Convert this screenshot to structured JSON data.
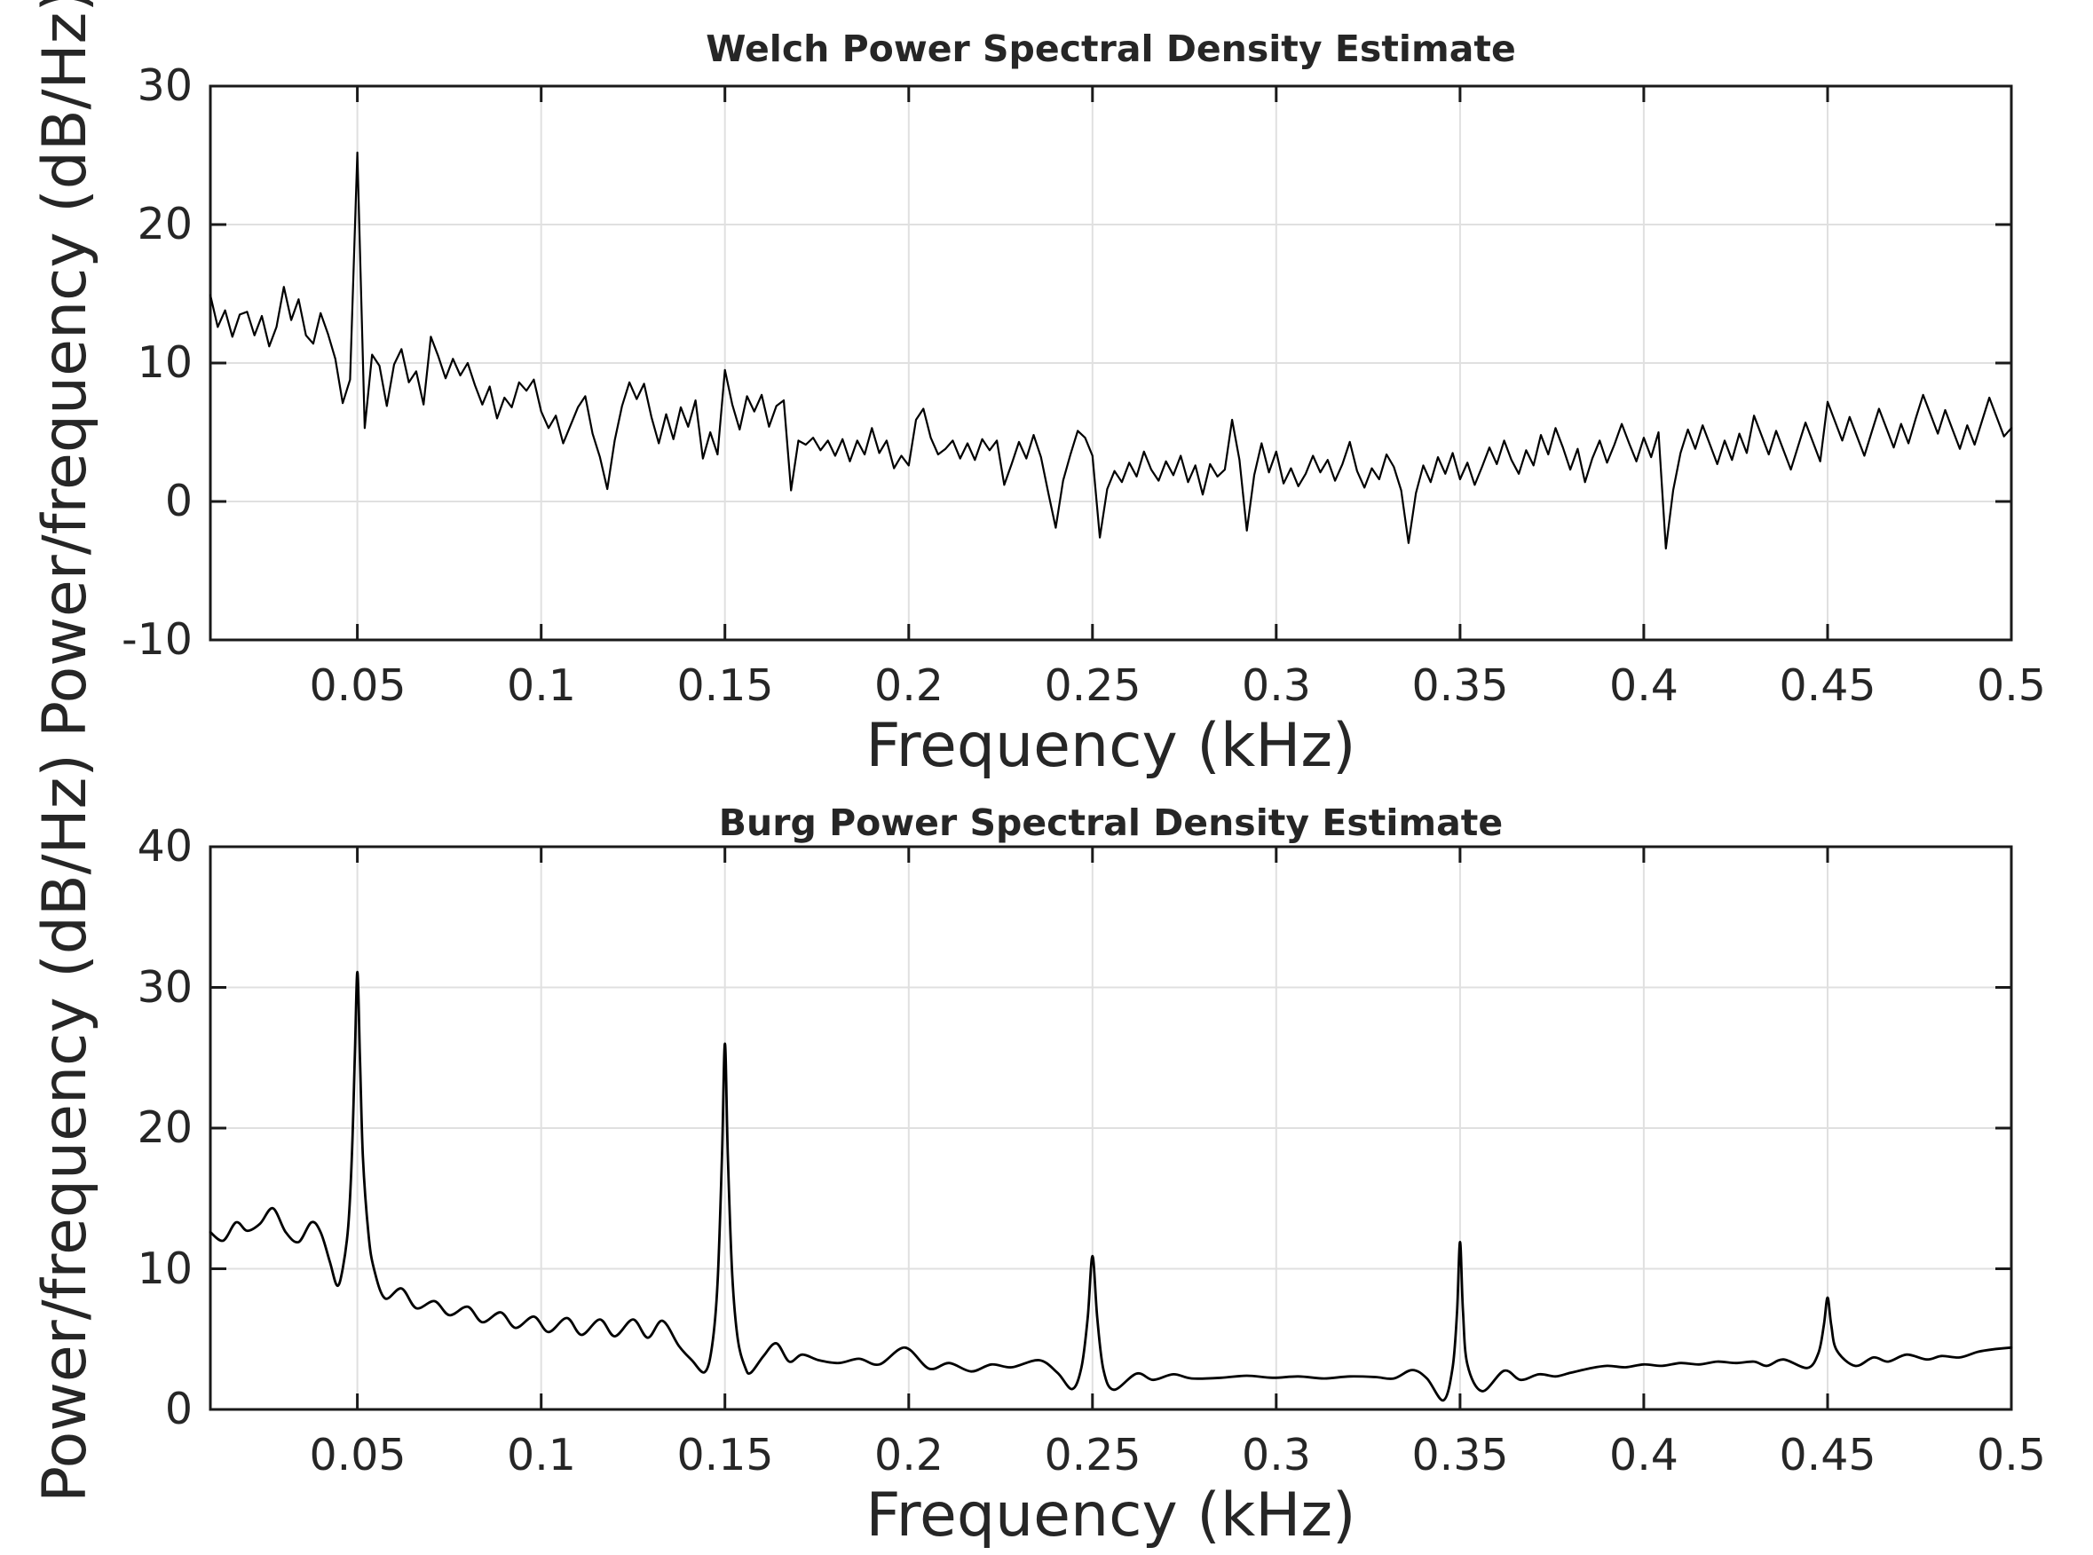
{
  "figure": {
    "background": "#ffffff",
    "text_color": "#262626",
    "grid_color": "#e0e0e0",
    "axis_color": "#1a1a1a",
    "line_color": "#000000"
  },
  "chart_data": [
    {
      "type": "line",
      "title": "Welch Power Spectral Density Estimate",
      "xlabel": "Frequency (kHz)",
      "ylabel": "Power/frequency (dB/Hz)",
      "xlim": [
        0.01,
        0.5
      ],
      "ylim": [
        -10,
        30
      ],
      "grid": true,
      "legend": "none",
      "xticks": {
        "values": [
          0.05,
          0.1,
          0.15,
          0.2,
          0.25,
          0.3,
          0.35,
          0.4,
          0.45,
          0.5
        ],
        "labels": [
          "0.05",
          "0.1",
          "0.15",
          "0.2",
          "0.25",
          "0.3",
          "0.35",
          "0.4",
          "0.45",
          "0.5"
        ]
      },
      "yticks": {
        "values": [
          30,
          20,
          10,
          0,
          -10
        ],
        "labels": [
          "30",
          "20",
          "10",
          "0",
          "-10"
        ]
      },
      "series": {
        "name": "welch-psd",
        "x_min": 0.01,
        "x_max": 0.5,
        "values": [
          14.9,
          12.6,
          13.8,
          11.9,
          13.5,
          13.7,
          12.0,
          13.4,
          11.2,
          12.6,
          15.5,
          13.1,
          14.6,
          12.0,
          11.4,
          13.6,
          12.1,
          10.3,
          7.1,
          8.8,
          25.2,
          5.3,
          10.6,
          9.8,
          6.9,
          9.9,
          11.0,
          8.6,
          9.4,
          7.0,
          11.9,
          10.5,
          8.9,
          10.3,
          9.1,
          10.0,
          8.4,
          7.0,
          8.3,
          6.0,
          7.5,
          6.8,
          8.6,
          8.0,
          8.8,
          6.5,
          5.3,
          6.2,
          4.2,
          5.5,
          6.8,
          7.6,
          4.9,
          3.2,
          0.9,
          4.4,
          6.9,
          8.6,
          7.4,
          8.5,
          6.1,
          4.2,
          6.3,
          4.5,
          6.8,
          5.4,
          7.3,
          3.1,
          5.0,
          3.4,
          9.5,
          7.0,
          5.2,
          7.6,
          6.5,
          7.7,
          5.4,
          6.9,
          7.3,
          0.8,
          4.4,
          4.1,
          4.6,
          3.7,
          4.4,
          3.3,
          4.5,
          2.9,
          4.4,
          3.4,
          5.3,
          3.5,
          4.4,
          2.4,
          3.3,
          2.6,
          5.9,
          6.7,
          4.6,
          3.4,
          3.8,
          4.4,
          3.1,
          4.2,
          3.0,
          4.5,
          3.7,
          4.4,
          1.2,
          2.7,
          4.3,
          3.1,
          4.8,
          3.2,
          0.6,
          -1.9,
          1.5,
          3.4,
          5.1,
          4.6,
          3.3,
          -2.6,
          0.9,
          2.2,
          1.4,
          2.8,
          1.8,
          3.6,
          2.3,
          1.5,
          2.9,
          1.9,
          3.3,
          1.4,
          2.6,
          0.5,
          2.7,
          1.8,
          2.3,
          5.9,
          3.0,
          -2.1,
          1.9,
          4.2,
          2.1,
          3.6,
          1.3,
          2.4,
          1.1,
          2.0,
          3.3,
          2.1,
          3.0,
          1.5,
          2.7,
          4.3,
          2.2,
          1.0,
          2.4,
          1.6,
          3.4,
          2.5,
          0.8,
          -3.0,
          0.6,
          2.6,
          1.4,
          3.2,
          2.0,
          3.5,
          1.6,
          2.8,
          1.2,
          2.5,
          3.9,
          2.7,
          4.4,
          3.0,
          2.0,
          3.7,
          2.6,
          4.8,
          3.4,
          5.3,
          3.9,
          2.3,
          3.8,
          1.4,
          3.1,
          4.4,
          2.8,
          4.1,
          5.6,
          4.2,
          2.9,
          4.6,
          3.2,
          5.0,
          -3.4,
          0.8,
          3.5,
          5.2,
          3.8,
          5.5,
          4.1,
          2.7,
          4.4,
          3.0,
          4.9,
          3.5,
          6.2,
          4.8,
          3.4,
          5.1,
          3.7,
          2.3,
          4.0,
          5.7,
          4.3,
          2.9,
          7.2,
          5.8,
          4.4,
          6.1,
          4.7,
          3.3,
          5.0,
          6.7,
          5.3,
          3.9,
          5.6,
          4.2,
          6.0,
          7.7,
          6.3,
          4.9,
          6.6,
          5.2,
          3.8,
          5.5,
          4.1,
          5.8,
          7.5,
          6.1,
          4.7,
          5.3
        ]
      }
    },
    {
      "type": "line",
      "title": "Burg Power Spectral Density Estimate",
      "xlabel": "Frequency (kHz)",
      "ylabel": "Power/frequency (dB/Hz)",
      "xlim": [
        0.01,
        0.5
      ],
      "ylim": [
        0,
        40
      ],
      "grid": true,
      "legend": "none",
      "peaks": [
        {
          "freq_khz": 0.05,
          "power_db": 31.1
        },
        {
          "freq_khz": 0.15,
          "power_db": 26.0
        },
        {
          "freq_khz": 0.25,
          "power_db": 10.9
        },
        {
          "freq_khz": 0.35,
          "power_db": 11.9
        },
        {
          "freq_khz": 0.45,
          "power_db": 8.0
        }
      ],
      "xticks": {
        "values": [
          0.05,
          0.1,
          0.15,
          0.2,
          0.25,
          0.3,
          0.35,
          0.4,
          0.45,
          0.5
        ],
        "labels": [
          "0.05",
          "0.1",
          "0.15",
          "0.2",
          "0.25",
          "0.3",
          "0.35",
          "0.4",
          "0.45",
          "0.5"
        ]
      },
      "yticks": {
        "values": [
          40,
          30,
          20,
          10,
          0
        ],
        "labels": [
          "40",
          "30",
          "20",
          "10",
          "0"
        ]
      },
      "series": {
        "name": "burg-psd",
        "points": [
          [
            0.01,
            12.6
          ],
          [
            0.0135,
            12.0
          ],
          [
            0.017,
            13.3
          ],
          [
            0.02,
            12.7
          ],
          [
            0.0235,
            13.2
          ],
          [
            0.027,
            14.3
          ],
          [
            0.0305,
            12.6
          ],
          [
            0.034,
            11.9
          ],
          [
            0.0375,
            13.3
          ],
          [
            0.04,
            12.6
          ],
          [
            0.0425,
            10.5
          ],
          [
            0.0445,
            8.8
          ],
          [
            0.046,
            10.0
          ],
          [
            0.0475,
            13.0
          ],
          [
            0.0485,
            18.0
          ],
          [
            0.0493,
            25.0
          ],
          [
            0.05,
            31.1
          ],
          [
            0.0507,
            25.0
          ],
          [
            0.0515,
            18.0
          ],
          [
            0.053,
            12.5
          ],
          [
            0.0545,
            10.0
          ],
          [
            0.0575,
            7.9
          ],
          [
            0.062,
            8.6
          ],
          [
            0.066,
            7.2
          ],
          [
            0.071,
            7.7
          ],
          [
            0.075,
            6.7
          ],
          [
            0.08,
            7.3
          ],
          [
            0.084,
            6.2
          ],
          [
            0.089,
            6.9
          ],
          [
            0.093,
            5.8
          ],
          [
            0.098,
            6.6
          ],
          [
            0.102,
            5.5
          ],
          [
            0.107,
            6.5
          ],
          [
            0.111,
            5.3
          ],
          [
            0.116,
            6.4
          ],
          [
            0.12,
            5.2
          ],
          [
            0.125,
            6.4
          ],
          [
            0.129,
            5.1
          ],
          [
            0.133,
            6.3
          ],
          [
            0.1375,
            4.5
          ],
          [
            0.141,
            3.5
          ],
          [
            0.1445,
            2.65
          ],
          [
            0.1465,
            4.5
          ],
          [
            0.148,
            9.0
          ],
          [
            0.1492,
            18.0
          ],
          [
            0.15,
            26.0
          ],
          [
            0.1508,
            18.0
          ],
          [
            0.152,
            9.5
          ],
          [
            0.1535,
            5.0
          ],
          [
            0.1555,
            3.0
          ],
          [
            0.157,
            2.6
          ],
          [
            0.1605,
            3.8
          ],
          [
            0.164,
            4.7
          ],
          [
            0.1675,
            3.4
          ],
          [
            0.171,
            3.9
          ],
          [
            0.1755,
            3.5
          ],
          [
            0.181,
            3.3
          ],
          [
            0.1865,
            3.6
          ],
          [
            0.192,
            3.2
          ],
          [
            0.199,
            4.4
          ],
          [
            0.2055,
            2.9
          ],
          [
            0.211,
            3.3
          ],
          [
            0.217,
            2.7
          ],
          [
            0.2225,
            3.2
          ],
          [
            0.228,
            3.0
          ],
          [
            0.2355,
            3.5
          ],
          [
            0.2405,
            2.6
          ],
          [
            0.2445,
            1.45
          ],
          [
            0.247,
            3.0
          ],
          [
            0.2487,
            6.5
          ],
          [
            0.25,
            10.9
          ],
          [
            0.2513,
            6.5
          ],
          [
            0.253,
            2.8
          ],
          [
            0.2558,
            1.4
          ],
          [
            0.262,
            2.55
          ],
          [
            0.2665,
            2.1
          ],
          [
            0.272,
            2.5
          ],
          [
            0.277,
            2.2
          ],
          [
            0.285,
            2.25
          ],
          [
            0.292,
            2.4
          ],
          [
            0.299,
            2.25
          ],
          [
            0.306,
            2.35
          ],
          [
            0.313,
            2.2
          ],
          [
            0.32,
            2.35
          ],
          [
            0.327,
            2.3
          ],
          [
            0.332,
            2.2
          ],
          [
            0.337,
            2.8
          ],
          [
            0.341,
            2.2
          ],
          [
            0.3455,
            0.65
          ],
          [
            0.348,
            3.0
          ],
          [
            0.3492,
            7.0
          ],
          [
            0.35,
            11.9
          ],
          [
            0.3508,
            7.0
          ],
          [
            0.352,
            3.2
          ],
          [
            0.356,
            1.3
          ],
          [
            0.362,
            2.75
          ],
          [
            0.3665,
            2.1
          ],
          [
            0.3715,
            2.5
          ],
          [
            0.376,
            2.35
          ],
          [
            0.38,
            2.6
          ],
          [
            0.385,
            2.9
          ],
          [
            0.39,
            3.1
          ],
          [
            0.395,
            3.0
          ],
          [
            0.4,
            3.2
          ],
          [
            0.405,
            3.1
          ],
          [
            0.41,
            3.3
          ],
          [
            0.415,
            3.2
          ],
          [
            0.42,
            3.4
          ],
          [
            0.425,
            3.3
          ],
          [
            0.43,
            3.4
          ],
          [
            0.4335,
            3.1
          ],
          [
            0.438,
            3.55
          ],
          [
            0.4445,
            2.95
          ],
          [
            0.4475,
            4.0
          ],
          [
            0.449,
            6.0
          ],
          [
            0.45,
            7.95
          ],
          [
            0.451,
            6.0
          ],
          [
            0.4525,
            4.2
          ],
          [
            0.4575,
            3.1
          ],
          [
            0.4625,
            3.7
          ],
          [
            0.4665,
            3.4
          ],
          [
            0.4715,
            3.9
          ],
          [
            0.477,
            3.55
          ],
          [
            0.481,
            3.8
          ],
          [
            0.486,
            3.7
          ],
          [
            0.491,
            4.1
          ],
          [
            0.496,
            4.3
          ],
          [
            0.5,
            4.4
          ]
        ]
      }
    }
  ]
}
